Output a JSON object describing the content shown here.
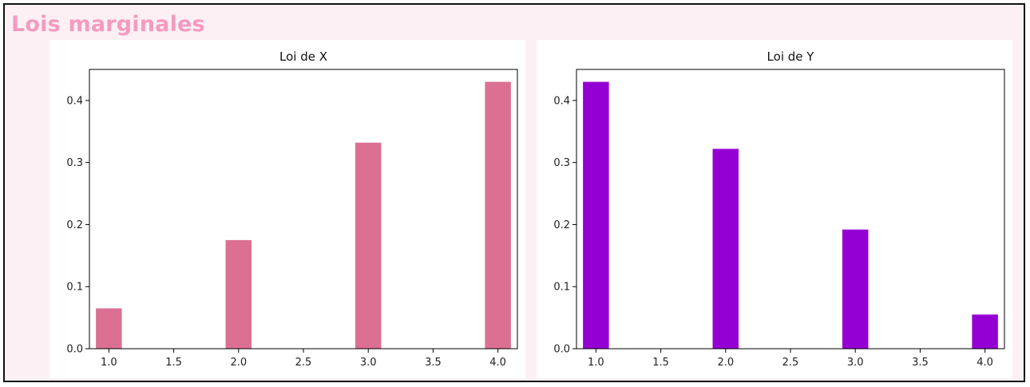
{
  "section": {
    "title": "Lois marginales"
  },
  "chart_data": [
    {
      "type": "bar",
      "title": "Loi de X",
      "xlabel": "",
      "ylabel": "",
      "x": [
        1,
        2,
        3,
        4
      ],
      "values": [
        0.065,
        0.175,
        0.332,
        0.43
      ],
      "bar_width": 0.2,
      "xlim": [
        0.85,
        4.15
      ],
      "ylim": [
        0,
        0.45
      ],
      "xticks": [
        1.0,
        1.5,
        2.0,
        2.5,
        3.0,
        3.5,
        4.0
      ],
      "xtick_labels": [
        "1.0",
        "1.5",
        "2.0",
        "2.5",
        "3.0",
        "3.5",
        "4.0"
      ],
      "yticks": [
        0.0,
        0.1,
        0.2,
        0.3,
        0.4
      ],
      "ytick_labels": [
        "0.0",
        "0.1",
        "0.2",
        "0.3",
        "0.4"
      ],
      "color": "#db7093",
      "grid": false
    },
    {
      "type": "bar",
      "title": "Loi de Y",
      "xlabel": "",
      "ylabel": "",
      "x": [
        1,
        2,
        3,
        4
      ],
      "values": [
        0.43,
        0.322,
        0.192,
        0.055
      ],
      "bar_width": 0.2,
      "xlim": [
        0.85,
        4.15
      ],
      "ylim": [
        0,
        0.45
      ],
      "xticks": [
        1.0,
        1.5,
        2.0,
        2.5,
        3.0,
        3.5,
        4.0
      ],
      "xtick_labels": [
        "1.0",
        "1.5",
        "2.0",
        "2.5",
        "3.0",
        "3.5",
        "4.0"
      ],
      "yticks": [
        0.0,
        0.1,
        0.2,
        0.3,
        0.4
      ],
      "ytick_labels": [
        "0.0",
        "0.1",
        "0.2",
        "0.3",
        "0.4"
      ],
      "color": "#9400d3",
      "grid": false
    }
  ]
}
